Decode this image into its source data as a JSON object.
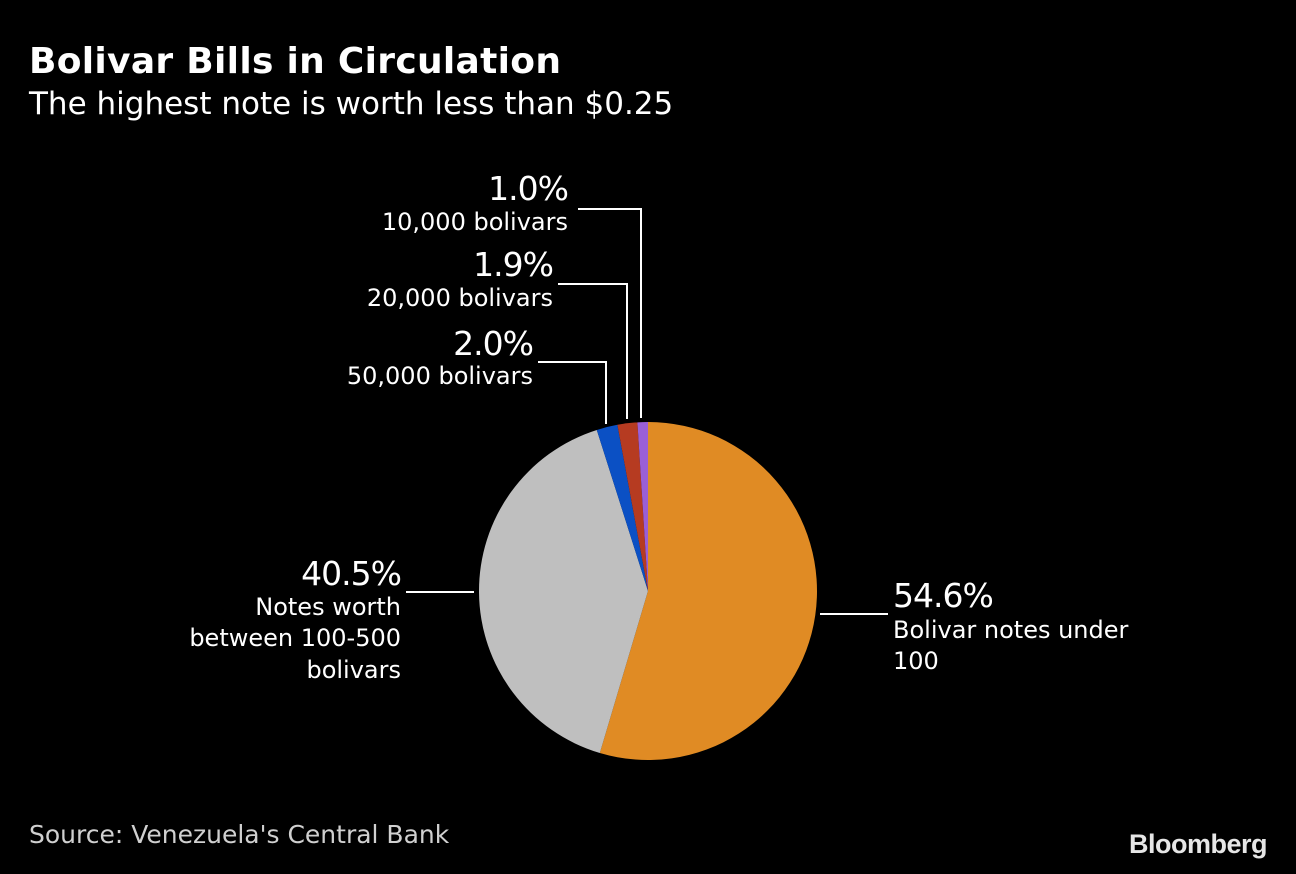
{
  "title": "Bolivar Bills in Circulation",
  "subtitle": "The highest note is worth less than $0.25",
  "source": "Source: Venezuela's Central Bank",
  "brand": "Bloomberg",
  "chart_data": {
    "type": "pie",
    "title": "Bolivar Bills in Circulation",
    "subtitle": "The highest note is worth less than $0.25",
    "start": "12 o'clock",
    "direction": "clockwise",
    "slices": [
      {
        "label": "Bolivar notes under 100",
        "value": 54.6,
        "value_label": "54.6%",
        "color": "#e08b24"
      },
      {
        "label": "Notes worth between 100-500 bolivars",
        "value": 40.5,
        "value_label": "40.5%",
        "color": "#bfbfbf"
      },
      {
        "label": "50,000 bolivars",
        "value": 2.0,
        "value_label": "2.0%",
        "color": "#0b50c4"
      },
      {
        "label": "20,000 bolivars",
        "value": 1.9,
        "value_label": "1.9%",
        "color": "#b63b21"
      },
      {
        "label": "10,000 bolivars",
        "value": 1.0,
        "value_label": "1.0%",
        "color": "#9a5fd6"
      }
    ]
  }
}
